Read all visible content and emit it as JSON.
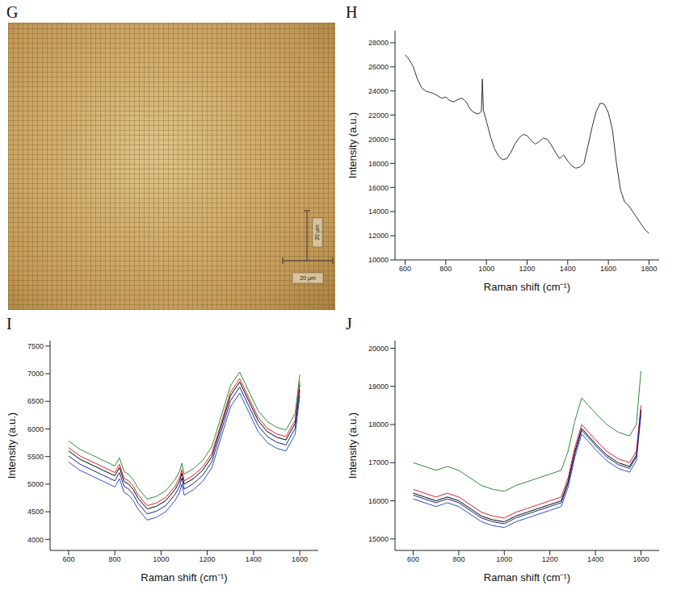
{
  "image_panel": {
    "panel_letter": "G",
    "scale_label": "20 µm"
  },
  "chart_data": [
    {
      "panel_letter": "H",
      "type": "line",
      "x_label": "Raman shift (cm⁻¹)",
      "y_label": "Intensity (a.u.)",
      "xlim": [
        550,
        1850
      ],
      "xticks": [
        600,
        800,
        1000,
        1200,
        1400,
        1600,
        1800
      ],
      "ylim": [
        10000,
        29000
      ],
      "yticks": [
        10000,
        12000,
        14000,
        16000,
        18000,
        20000,
        22000,
        24000,
        26000,
        28000
      ],
      "grid": false,
      "x": [
        600,
        620,
        640,
        660,
        680,
        700,
        720,
        740,
        760,
        780,
        800,
        820,
        840,
        860,
        880,
        900,
        920,
        940,
        960,
        975,
        980,
        985,
        1000,
        1020,
        1040,
        1060,
        1080,
        1100,
        1120,
        1140,
        1160,
        1180,
        1200,
        1220,
        1240,
        1260,
        1280,
        1300,
        1320,
        1340,
        1360,
        1380,
        1400,
        1420,
        1440,
        1460,
        1480,
        1500,
        1520,
        1540,
        1560,
        1580,
        1600,
        1620,
        1640,
        1660,
        1680,
        1700,
        1720,
        1740,
        1760,
        1780,
        1800
      ],
      "series": [
        {
          "color": "#333333",
          "values": [
            27000,
            26600,
            26000,
            25000,
            24300,
            24000,
            23900,
            23800,
            23600,
            23400,
            23500,
            23200,
            23100,
            23300,
            23400,
            23100,
            22500,
            22200,
            22100,
            22300,
            25000,
            22400,
            21500,
            20200,
            19200,
            18600,
            18300,
            18400,
            18900,
            19600,
            20100,
            20400,
            20300,
            19900,
            19600,
            19800,
            20100,
            20000,
            19500,
            18900,
            18400,
            18700,
            18200,
            17800,
            17600,
            17700,
            18000,
            19500,
            21000,
            22300,
            23000,
            22900,
            22200,
            20800,
            18000,
            15800,
            14800,
            14500,
            14000,
            13500,
            13000,
            12500,
            12200
          ]
        }
      ]
    },
    {
      "panel_letter": "I",
      "type": "line",
      "x_label": "Raman shift (cm⁻¹)",
      "y_label": "Intensity (a.u.)",
      "xlim": [
        520,
        1680
      ],
      "xticks": [
        600,
        800,
        1000,
        1200,
        1400,
        1600
      ],
      "ylim": [
        3800,
        7600
      ],
      "yticks": [
        4000,
        4500,
        5000,
        5500,
        6000,
        6500,
        7000,
        7500
      ],
      "grid": false,
      "x": [
        600,
        650,
        700,
        750,
        800,
        820,
        840,
        860,
        880,
        900,
        940,
        980,
        1020,
        1060,
        1080,
        1090,
        1100,
        1140,
        1180,
        1220,
        1260,
        1300,
        1340,
        1380,
        1420,
        1460,
        1500,
        1540,
        1580,
        1600
      ],
      "series": [
        {
          "color": "#000000",
          "values": [
            5600,
            5450,
            5350,
            5250,
            5150,
            5300,
            5050,
            5000,
            4900,
            4750,
            4550,
            4600,
            4700,
            4900,
            5050,
            5200,
            5000,
            5100,
            5250,
            5500,
            6050,
            6600,
            6850,
            6500,
            6150,
            5950,
            5850,
            5800,
            6100,
            6800
          ]
        },
        {
          "color": "#e0202a",
          "values": [
            5660,
            5510,
            5410,
            5310,
            5210,
            5360,
            5110,
            5060,
            4960,
            4810,
            4610,
            4660,
            4760,
            4960,
            5110,
            5260,
            5060,
            5160,
            5310,
            5560,
            6110,
            6660,
            6910,
            6560,
            6210,
            6010,
            5910,
            5860,
            6160,
            6860
          ]
        },
        {
          "color": "#2a4fd8",
          "values": [
            5400,
            5250,
            5150,
            5050,
            4950,
            5100,
            4850,
            4800,
            4700,
            4550,
            4350,
            4400,
            4500,
            4700,
            4850,
            5000,
            4800,
            4900,
            5050,
            5300,
            5850,
            6400,
            6650,
            6300,
            5950,
            5750,
            5650,
            5600,
            5900,
            6600
          ]
        },
        {
          "color": "#2e8b3a",
          "values": [
            5780,
            5630,
            5530,
            5430,
            5330,
            5480,
            5230,
            5180,
            5080,
            4930,
            4730,
            4780,
            4880,
            5080,
            5230,
            5380,
            5180,
            5280,
            5430,
            5680,
            6230,
            6780,
            7030,
            6680,
            6330,
            6130,
            6030,
            5980,
            6280,
            6980
          ]
        },
        {
          "color": "#1a237e",
          "values": [
            5510,
            5360,
            5260,
            5160,
            5060,
            5210,
            4960,
            4910,
            4810,
            4660,
            4460,
            4510,
            4610,
            4810,
            4960,
            5110,
            4910,
            5010,
            5160,
            5410,
            5960,
            6510,
            6760,
            6410,
            6060,
            5860,
            5760,
            5710,
            6010,
            6710
          ]
        }
      ]
    },
    {
      "panel_letter": "J",
      "type": "line",
      "x_label": "Raman shift (cm⁻¹)",
      "y_label": "Intensity (a.u.)",
      "xlim": [
        520,
        1680
      ],
      "xticks": [
        600,
        800,
        1000,
        1200,
        1400,
        1600
      ],
      "ylim": [
        14700,
        20200
      ],
      "yticks": [
        15000,
        16000,
        17000,
        18000,
        19000,
        20000
      ],
      "grid": false,
      "x": [
        600,
        650,
        700,
        750,
        800,
        850,
        900,
        950,
        1000,
        1050,
        1100,
        1150,
        1200,
        1250,
        1280,
        1310,
        1340,
        1370,
        1400,
        1450,
        1500,
        1550,
        1580,
        1600
      ],
      "series": [
        {
          "color": "#000000",
          "values": [
            16200,
            16100,
            16000,
            16100,
            16000,
            15800,
            15600,
            15500,
            15450,
            15600,
            15700,
            15800,
            15900,
            16000,
            16500,
            17300,
            17900,
            17700,
            17500,
            17200,
            17000,
            16900,
            17200,
            18400
          ]
        },
        {
          "color": "#e0202a",
          "values": [
            16300,
            16200,
            16100,
            16200,
            16100,
            15900,
            15700,
            15600,
            15550,
            15700,
            15800,
            15900,
            16000,
            16100,
            16600,
            17400,
            18000,
            17800,
            17600,
            17300,
            17100,
            17000,
            17300,
            18500
          ]
        },
        {
          "color": "#2a4fd8",
          "values": [
            16050,
            15950,
            15850,
            15950,
            15850,
            15650,
            15450,
            15350,
            15300,
            15450,
            15550,
            15650,
            15750,
            15850,
            16350,
            17150,
            17750,
            17550,
            17350,
            17050,
            16850,
            16750,
            17050,
            18250
          ]
        },
        {
          "color": "#2e8b3a",
          "values": [
            17000,
            16900,
            16800,
            16900,
            16800,
            16600,
            16400,
            16300,
            16250,
            16400,
            16500,
            16600,
            16700,
            16800,
            17300,
            18100,
            18700,
            18500,
            18300,
            18000,
            17800,
            17700,
            18000,
            19400
          ]
        },
        {
          "color": "#1a237e",
          "values": [
            16150,
            16050,
            15950,
            16050,
            15950,
            15750,
            15550,
            15450,
            15400,
            15550,
            15650,
            15750,
            15850,
            15950,
            16450,
            17250,
            17850,
            17650,
            17450,
            17150,
            16950,
            16850,
            17150,
            18350
          ]
        }
      ]
    }
  ]
}
